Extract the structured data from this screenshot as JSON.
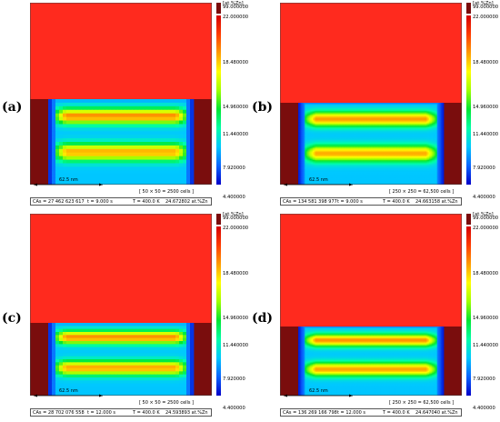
{
  "colorbar": {
    "unit": "[at.%Zn]",
    "ticks": [
      "99.000000",
      "22.000000",
      "18.480000",
      "14.960000",
      "11.440000",
      "7.920000",
      "4.400000"
    ]
  },
  "colors": {
    "matrix": "#ff2a1e",
    "bath": "#7a0d0d",
    "colormap": [
      "#0000c8",
      "#0a64ff",
      "#00c8ff",
      "#00ffa8",
      "#00e632",
      "#a0ff00",
      "#ffff00",
      "#ff9c00",
      "#ff3a00",
      "#d40000"
    ]
  },
  "panels": [
    {
      "letter": "(a)",
      "scale": "62.5 nm",
      "cells": "[ 50 × 50 = 2500 cells ]",
      "cas": "CAs = 27 462 623 617",
      "time": "t = 9.000 s",
      "temp": "T = 400.0 K",
      "conc": "24.672802 at.%Zn",
      "interface_level": 0.53,
      "band_a": 0.58,
      "band_b": 0.54,
      "pixelated": true
    },
    {
      "letter": "(b)",
      "scale": "62.5 nm",
      "cells": "[ 250 × 250 = 62,500 cells ]",
      "cas": "CAs = 134 581 398 977",
      "time": "t = 9.000 s",
      "temp": "T = 400.0 K",
      "conc": "24.663158 at.%Zn",
      "interface_level": 0.55,
      "band_a": 0.56,
      "band_b": 0.54,
      "pixelated": false
    },
    {
      "letter": "(c)",
      "scale": "62.5 nm",
      "cells": "[ 50 × 50 = 2500 cells ]",
      "cas": "CAs = 28 702 076 558",
      "time": "t = 12.000 s",
      "temp": "T = 400.0 K",
      "conc": "24.593893 at.%Zn",
      "interface_level": 0.6,
      "band_a": 0.58,
      "band_b": 0.55,
      "pixelated": true
    },
    {
      "letter": "(d)",
      "scale": "62.5 nm",
      "cells": "[ 250 × 250 = 62,500 cells ]",
      "cas": "CAs = 136 269 166 798",
      "time": "t = 12.000 s",
      "temp": "T = 400.0 K",
      "conc": "24.647040 at.%Zn",
      "interface_level": 0.62,
      "band_a": 0.57,
      "band_b": 0.55,
      "pixelated": false
    }
  ]
}
